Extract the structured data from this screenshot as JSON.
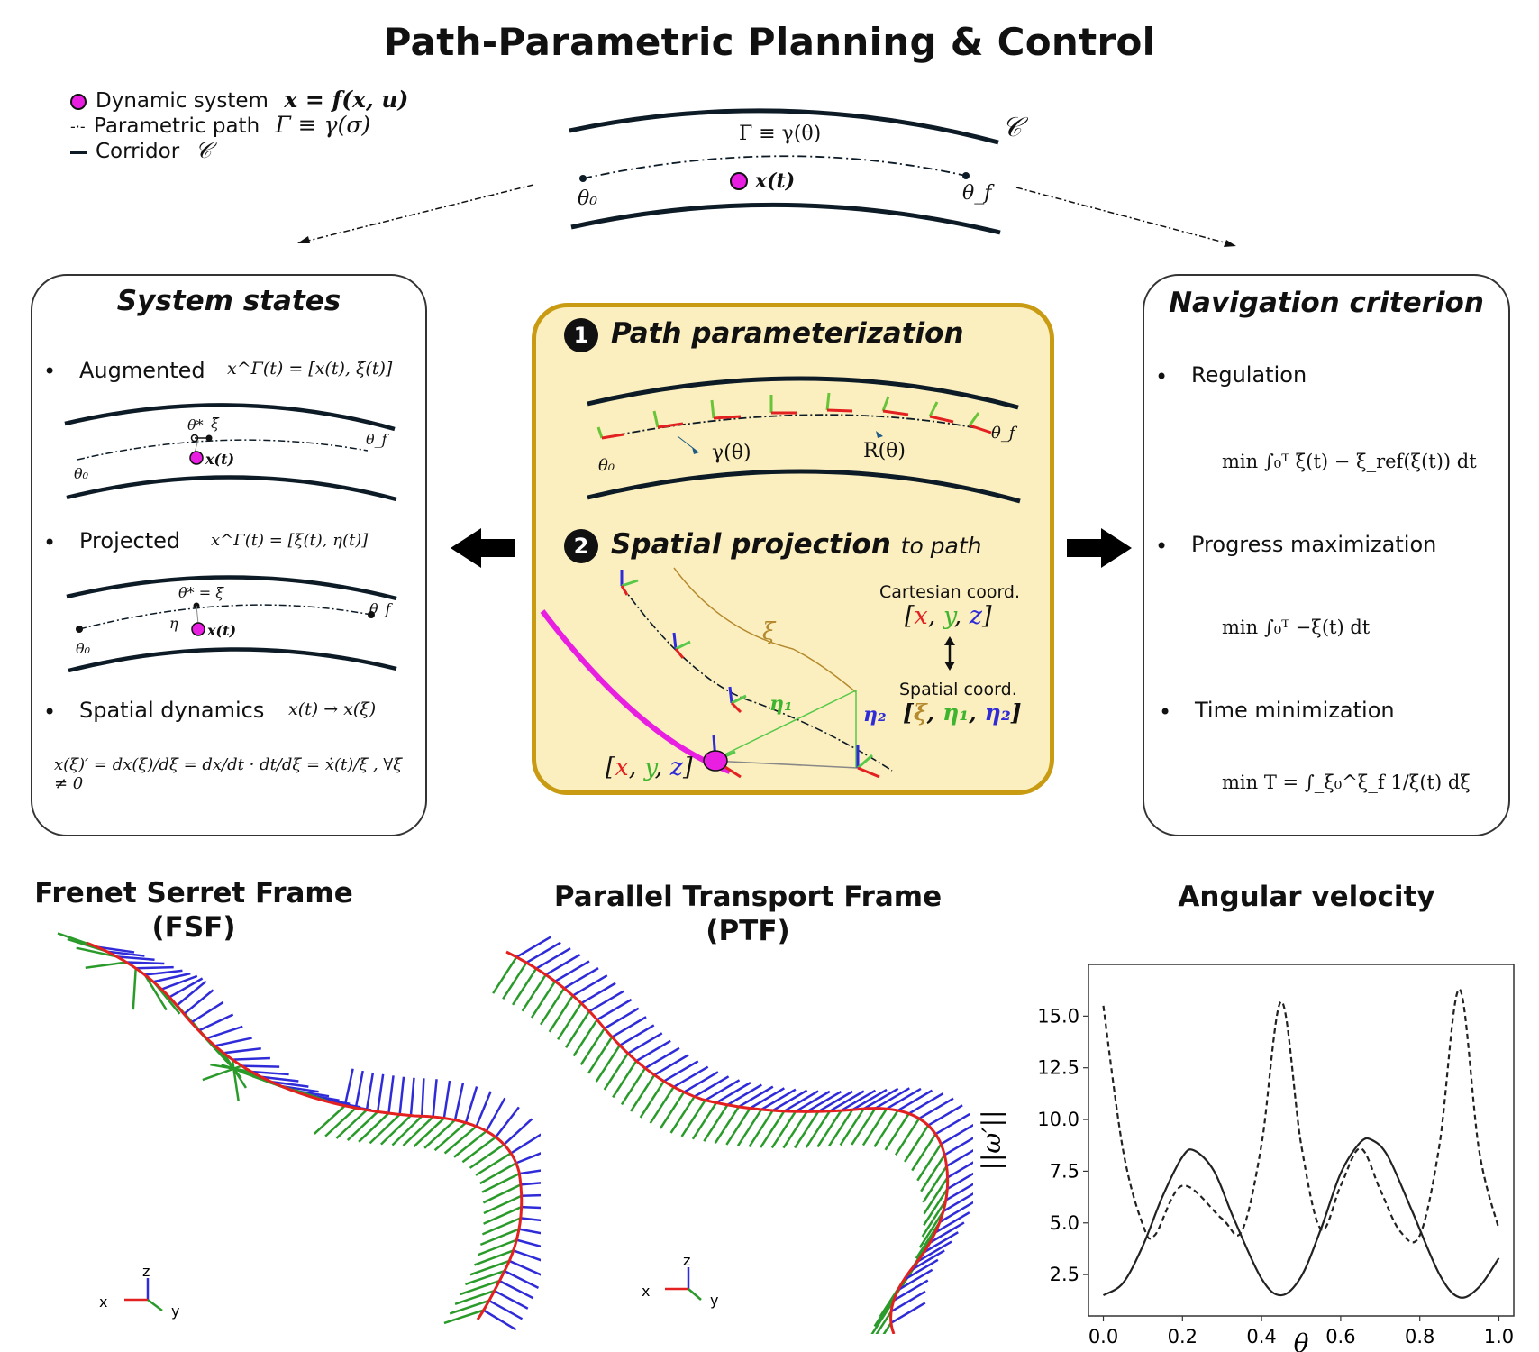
{
  "title": "Path-Parametric Planning & Control",
  "legend": {
    "items": [
      {
        "label": "Dynamic system",
        "math": "x = f(x, u)"
      },
      {
        "label": "Parametric path",
        "math": "Γ ≡ γ(σ)"
      },
      {
        "label": "Corridor",
        "math": "𝒞"
      }
    ]
  },
  "top_diagram": {
    "corridor_label": "𝒞",
    "path_label": "Γ ≡ γ(θ)",
    "state_label": "x(t)",
    "theta0": "θ₀",
    "thetaf": "θ_f"
  },
  "left_panel": {
    "title": "System states",
    "augmented": {
      "label": "Augmented",
      "math": "x^Γ(t) = [x(t), ξ̃(t)]",
      "star": "θ*",
      "xi": "ξ̃",
      "state": "x(t)",
      "theta0": "θ₀",
      "thetaf": "θ_f"
    },
    "projected": {
      "label": "Projected",
      "math": "x^Γ(t) = [ξ(t), η(t)]",
      "star": "θ* = ξ",
      "eta": "η",
      "state": "x(t)",
      "theta0": "θ₀",
      "thetaf": "θ_f"
    },
    "spatial": {
      "label": "Spatial dynamics",
      "math": "x(t) → x(ξ)",
      "formula": "x(ξ)′ = dx(ξ)/dξ = dx/dt · dt/dξ = ẋ(t)/ξ̇ , ∀ξ̇ ≠ 0"
    }
  },
  "center_panel": {
    "step1_num": "1",
    "step1_title": "Path parameterization",
    "gamma_label": "γ(θ)",
    "r_label": "R(θ)",
    "theta0": "θ₀",
    "thetaf": "θ_f",
    "step2_num": "2",
    "step2_title": "Spatial projection",
    "step2_suffix": "to path",
    "xi_label": "ξ",
    "eta1": "η₁",
    "eta2": "η₂",
    "cart_label": "Cartesian coord.",
    "spatial_label": "Spatial coord.",
    "xyz": [
      "x",
      "y",
      "z"
    ],
    "xi_eta": [
      "ξ",
      "η₁",
      "η₂"
    ]
  },
  "right_panel": {
    "title": "Navigation criterion",
    "items": [
      {
        "label": "Regulation",
        "formula": "min ∫₀ᵀ ξ̇(t) − ξ̇_ref(ξ(t)) dt"
      },
      {
        "label": "Progress maximization",
        "formula": "min ∫₀ᵀ −ξ(t) dt"
      },
      {
        "label": "Time minimization",
        "formula": "min T = ∫_ξ₀^ξ_f 1/ξ̇(t) dξ"
      }
    ]
  },
  "bottom": {
    "fsf_title_1": "Frenet Serret Frame",
    "fsf_title_2": "(FSF)",
    "ptf_title_1": "Parallel Transport Frame",
    "ptf_title_2": "(PTF)",
    "ang_title": "Angular velocity",
    "axis_labels": [
      "z",
      "x",
      "y"
    ]
  },
  "chart_data": {
    "type": "line",
    "title": "Angular velocity",
    "xlabel": "θ",
    "ylabel": "||ω′||",
    "xlim": [
      0.0,
      1.0
    ],
    "ylim": [
      0.5,
      17.5
    ],
    "xticks": [
      "0.0",
      "0.2",
      "0.4",
      "0.6",
      "0.8",
      "1.0"
    ],
    "yticks": [
      "2.5",
      "5.0",
      "7.5",
      "10.0",
      "12.5",
      "15.0"
    ],
    "series": [
      {
        "style": "dashed",
        "x": [
          0.0,
          0.05,
          0.1,
          0.13,
          0.2,
          0.3,
          0.35,
          0.4,
          0.45,
          0.5,
          0.55,
          0.6,
          0.65,
          0.7,
          0.75,
          0.8,
          0.85,
          0.9,
          0.95,
          1.0
        ],
        "y": [
          15.5,
          8.5,
          4.9,
          4.4,
          6.8,
          5.2,
          4.6,
          8.8,
          15.7,
          8.8,
          4.7,
          6.8,
          8.6,
          6.6,
          4.6,
          4.4,
          8.8,
          16.3,
          8.5,
          4.7
        ]
      },
      {
        "style": "solid",
        "x": [
          0.0,
          0.05,
          0.1,
          0.15,
          0.2,
          0.23,
          0.28,
          0.33,
          0.4,
          0.45,
          0.5,
          0.55,
          0.6,
          0.65,
          0.68,
          0.72,
          0.78,
          0.85,
          0.9,
          0.95,
          1.0
        ],
        "y": [
          1.5,
          2.1,
          3.9,
          6.3,
          8.2,
          8.5,
          7.5,
          5.2,
          2.3,
          1.5,
          2.4,
          4.7,
          7.4,
          8.9,
          9.0,
          8.2,
          5.6,
          2.5,
          1.4,
          1.9,
          3.3
        ]
      }
    ]
  }
}
